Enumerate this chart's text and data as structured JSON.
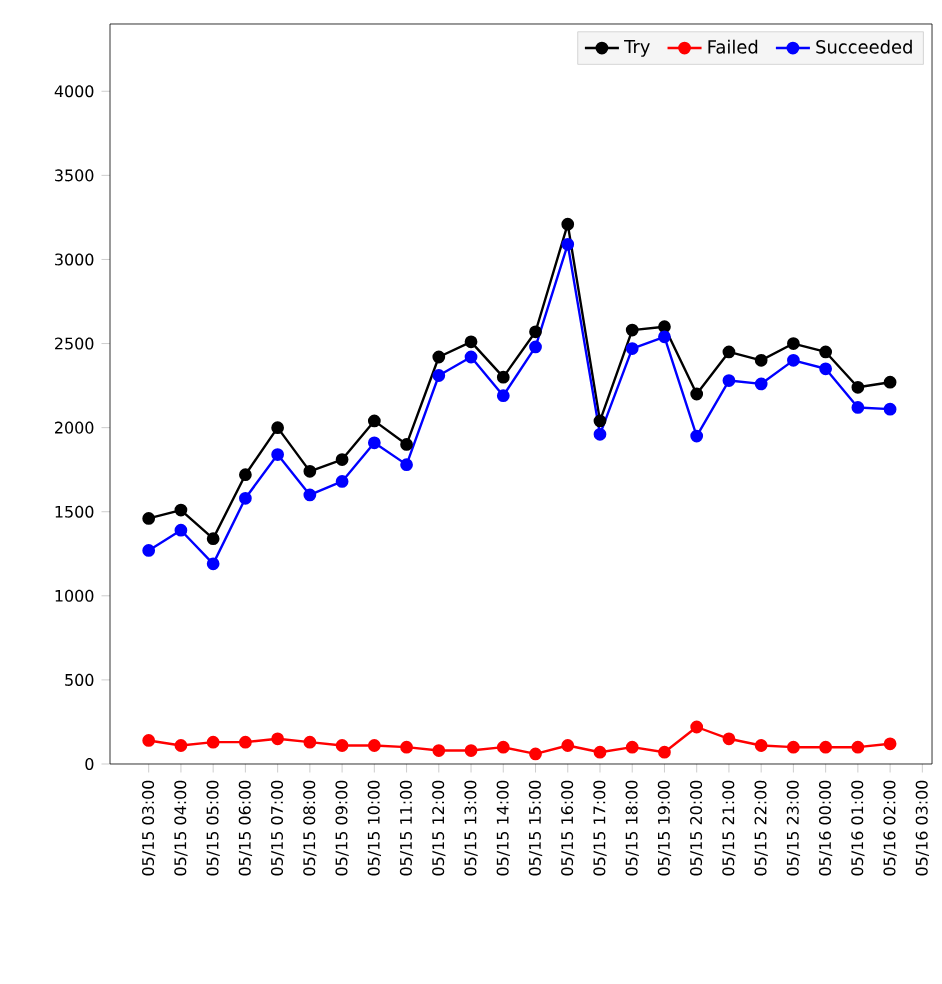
{
  "chart_data": {
    "type": "line",
    "categories": [
      "05/15 03:00",
      "05/15 04:00",
      "05/15 05:00",
      "05/15 06:00",
      "05/15 07:00",
      "05/15 08:00",
      "05/15 09:00",
      "05/15 10:00",
      "05/15 11:00",
      "05/15 12:00",
      "05/15 13:00",
      "05/15 14:00",
      "05/15 15:00",
      "05/15 16:00",
      "05/15 17:00",
      "05/15 18:00",
      "05/15 19:00",
      "05/15 20:00",
      "05/15 21:00",
      "05/15 22:00",
      "05/15 23:00",
      "05/16 00:00",
      "05/16 01:00",
      "05/16 02:00",
      "05/16 03:00"
    ],
    "series": [
      {
        "name": "Try",
        "color": "#000000",
        "values": [
          1460,
          1510,
          1340,
          1720,
          2000,
          1740,
          1810,
          2040,
          1900,
          2420,
          2510,
          2300,
          2570,
          3210,
          2040,
          2580,
          2600,
          2200,
          2450,
          2400,
          2500,
          2450,
          2240,
          2270,
          null
        ]
      },
      {
        "name": "Failed",
        "color": "#ff0000",
        "values": [
          140,
          110,
          130,
          130,
          150,
          130,
          110,
          110,
          100,
          80,
          80,
          100,
          60,
          110,
          70,
          100,
          70,
          220,
          150,
          110,
          100,
          100,
          100,
          120,
          null
        ]
      },
      {
        "name": "Succeeded",
        "color": "#0000ff",
        "values": [
          1270,
          1390,
          1190,
          1580,
          1840,
          1600,
          1680,
          1910,
          1780,
          2310,
          2420,
          2190,
          2480,
          3090,
          1960,
          2470,
          2540,
          1950,
          2280,
          2260,
          2400,
          2350,
          2120,
          2110,
          null
        ]
      }
    ],
    "ylim": [
      0,
      4400
    ],
    "yticks": [
      0,
      500,
      1000,
      1500,
      2000,
      2500,
      3000,
      3500,
      4000
    ],
    "legend": "top right",
    "marker": "circle",
    "line_style": "solid",
    "grid": false
  }
}
